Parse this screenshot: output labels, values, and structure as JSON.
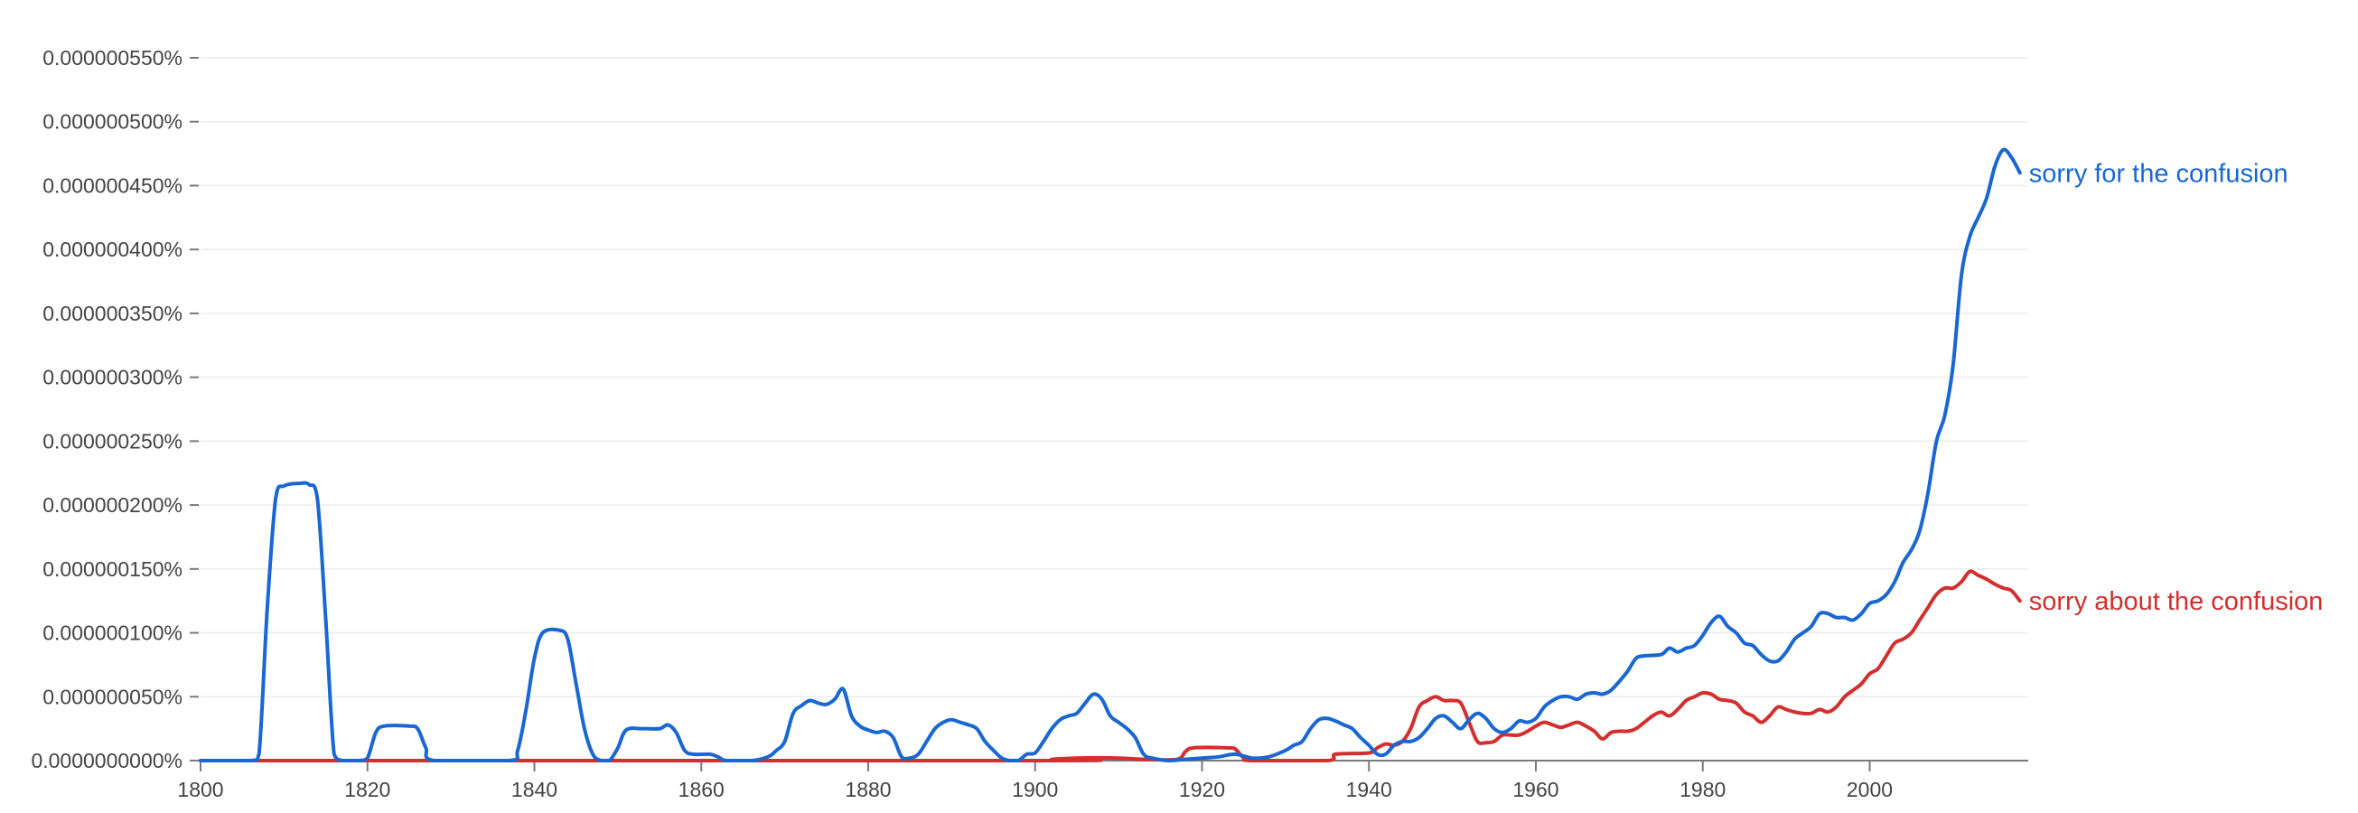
{
  "chart_data": {
    "type": "line",
    "title": "",
    "xlabel": "",
    "ylabel": "",
    "xlim": [
      1800,
      2019
    ],
    "ylim": [
      0,
      5.5e-07
    ],
    "grid": true,
    "legend": "inline-right",
    "x_ticks": [
      {
        "value": 1800,
        "label": "1800"
      },
      {
        "value": 1820,
        "label": "1820"
      },
      {
        "value": 1840,
        "label": "1840"
      },
      {
        "value": 1860,
        "label": "1860"
      },
      {
        "value": 1880,
        "label": "1880"
      },
      {
        "value": 1900,
        "label": "1900"
      },
      {
        "value": 1920,
        "label": "1920"
      },
      {
        "value": 1940,
        "label": "1940"
      },
      {
        "value": 1960,
        "label": "1960"
      },
      {
        "value": 1980,
        "label": "1980"
      },
      {
        "value": 2000,
        "label": "2000"
      }
    ],
    "y_ticks": [
      {
        "value": 0,
        "label": "0.0000000000%"
      },
      {
        "value": 5e-08,
        "label": "0.000000050%"
      },
      {
        "value": 1e-07,
        "label": "0.000000100%"
      },
      {
        "value": 1.5e-07,
        "label": "0.000000150%"
      },
      {
        "value": 2e-07,
        "label": "0.000000200%"
      },
      {
        "value": 2.5e-07,
        "label": "0.000000250%"
      },
      {
        "value": 3e-07,
        "label": "0.000000300%"
      },
      {
        "value": 3.5e-07,
        "label": "0.000000350%"
      },
      {
        "value": 4e-07,
        "label": "0.000000400%"
      },
      {
        "value": 4.5e-07,
        "label": "0.000000450%"
      },
      {
        "value": 5e-07,
        "label": "0.000000500%"
      },
      {
        "value": 5.5e-07,
        "label": "0.000000550%"
      }
    ],
    "series": [
      {
        "name": "sorry for the confusion",
        "color": "#1967d2",
        "points": [
          [
            1800,
            0
          ],
          [
            1806,
            0
          ],
          [
            1807,
            5e-09
          ],
          [
            1808,
            1.2e-07
          ],
          [
            1809,
            2.05e-07
          ],
          [
            1810,
            2.15e-07
          ],
          [
            1812,
            2.17e-07
          ],
          [
            1813,
            2.16e-07
          ],
          [
            1814,
            2.05e-07
          ],
          [
            1815,
            1.1e-07
          ],
          [
            1816,
            5e-09
          ],
          [
            1817,
            0
          ],
          [
            1819,
            0
          ],
          [
            1820,
            2e-09
          ],
          [
            1821,
            2.2e-08
          ],
          [
            1822,
            2.7e-08
          ],
          [
            1825,
            2.7e-08
          ],
          [
            1826,
            2.5e-08
          ],
          [
            1827,
            1e-08
          ],
          [
            1828,
            0
          ],
          [
            1837,
            0
          ],
          [
            1838,
            8e-09
          ],
          [
            1839,
            4e-08
          ],
          [
            1840,
            8e-08
          ],
          [
            1841,
            1e-07
          ],
          [
            1843,
            1.02e-07
          ],
          [
            1844,
            9.5e-08
          ],
          [
            1845,
            6e-08
          ],
          [
            1846,
            2.5e-08
          ],
          [
            1847,
            5e-09
          ],
          [
            1848,
            0
          ],
          [
            1849,
            0
          ],
          [
            1850,
            1e-08
          ],
          [
            1851,
            2.4e-08
          ],
          [
            1853,
            2.5e-08
          ],
          [
            1855,
            2.5e-08
          ],
          [
            1856,
            2.8e-08
          ],
          [
            1857,
            2.2e-08
          ],
          [
            1858,
            8e-09
          ],
          [
            1859,
            5e-09
          ],
          [
            1861,
            5e-09
          ],
          [
            1862,
            3e-09
          ],
          [
            1863,
            0
          ],
          [
            1866,
            0
          ],
          [
            1868,
            3e-09
          ],
          [
            1869,
            8e-09
          ],
          [
            1870,
            1.5e-08
          ],
          [
            1871,
            3.7e-08
          ],
          [
            1872,
            4.3e-08
          ],
          [
            1873,
            4.7e-08
          ],
          [
            1874,
            4.5e-08
          ],
          [
            1875,
            4.4e-08
          ],
          [
            1876,
            4.8e-08
          ],
          [
            1877,
            5.6e-08
          ],
          [
            1878,
            3.5e-08
          ],
          [
            1879,
            2.7e-08
          ],
          [
            1880,
            2.4e-08
          ],
          [
            1881,
            2.2e-08
          ],
          [
            1882,
            2.3e-08
          ],
          [
            1883,
            1.8e-08
          ],
          [
            1884,
            3e-09
          ],
          [
            1885,
            2e-09
          ],
          [
            1886,
            5e-09
          ],
          [
            1887,
            1.5e-08
          ],
          [
            1888,
            2.5e-08
          ],
          [
            1889,
            3e-08
          ],
          [
            1890,
            3.2e-08
          ],
          [
            1891,
            3e-08
          ],
          [
            1892,
            2.8e-08
          ],
          [
            1893,
            2.5e-08
          ],
          [
            1894,
            1.5e-08
          ],
          [
            1895,
            8e-09
          ],
          [
            1896,
            2e-09
          ],
          [
            1897,
            0
          ],
          [
            1898,
            0
          ],
          [
            1899,
            5e-09
          ],
          [
            1900,
            6e-09
          ],
          [
            1901,
            1.5e-08
          ],
          [
            1902,
            2.5e-08
          ],
          [
            1903,
            3.2e-08
          ],
          [
            1904,
            3.5e-08
          ],
          [
            1905,
            3.7e-08
          ],
          [
            1906,
            4.5e-08
          ],
          [
            1907,
            5.2e-08
          ],
          [
            1908,
            4.8e-08
          ],
          [
            1909,
            3.5e-08
          ],
          [
            1910,
            3e-08
          ],
          [
            1911,
            2.5e-08
          ],
          [
            1912,
            1.8e-08
          ],
          [
            1913,
            5e-09
          ],
          [
            1914,
            2e-09
          ],
          [
            1916,
            0
          ],
          [
            1918,
            1e-09
          ],
          [
            1920,
            2e-09
          ],
          [
            1922,
            3e-09
          ],
          [
            1924,
            5e-09
          ],
          [
            1926,
            2e-09
          ],
          [
            1928,
            3e-09
          ],
          [
            1930,
            8e-09
          ],
          [
            1931,
            1.2e-08
          ],
          [
            1932,
            1.5e-08
          ],
          [
            1933,
            2.5e-08
          ],
          [
            1934,
            3.2e-08
          ],
          [
            1935,
            3.3e-08
          ],
          [
            1936,
            3.1e-08
          ],
          [
            1937,
            2.8e-08
          ],
          [
            1938,
            2.5e-08
          ],
          [
            1939,
            1.8e-08
          ],
          [
            1940,
            1.2e-08
          ],
          [
            1941,
            5e-09
          ],
          [
            1942,
            5e-09
          ],
          [
            1943,
            1.2e-08
          ],
          [
            1944,
            1.5e-08
          ],
          [
            1945,
            1.5e-08
          ],
          [
            1946,
            1.8e-08
          ],
          [
            1947,
            2.5e-08
          ],
          [
            1948,
            3.3e-08
          ],
          [
            1949,
            3.5e-08
          ],
          [
            1950,
            3e-08
          ],
          [
            1951,
            2.5e-08
          ],
          [
            1952,
            3.2e-08
          ],
          [
            1953,
            3.7e-08
          ],
          [
            1954,
            3.3e-08
          ],
          [
            1955,
            2.5e-08
          ],
          [
            1956,
            2.2e-08
          ],
          [
            1957,
            2.5e-08
          ],
          [
            1958,
            3.1e-08
          ],
          [
            1959,
            3e-08
          ],
          [
            1960,
            3.3e-08
          ],
          [
            1961,
            4.2e-08
          ],
          [
            1962,
            4.7e-08
          ],
          [
            1963,
            5e-08
          ],
          [
            1964,
            5e-08
          ],
          [
            1965,
            4.8e-08
          ],
          [
            1966,
            5.2e-08
          ],
          [
            1967,
            5.3e-08
          ],
          [
            1968,
            5.2e-08
          ],
          [
            1969,
            5.5e-08
          ],
          [
            1970,
            6.2e-08
          ],
          [
            1971,
            7e-08
          ],
          [
            1972,
            8e-08
          ],
          [
            1973,
            8.2e-08
          ],
          [
            1975,
            8.3e-08
          ],
          [
            1976,
            8.8e-08
          ],
          [
            1977,
            8.5e-08
          ],
          [
            1978,
            8.8e-08
          ],
          [
            1979,
            9e-08
          ],
          [
            1980,
            9.8e-08
          ],
          [
            1981,
            1.08e-07
          ],
          [
            1982,
            1.13e-07
          ],
          [
            1983,
            1.05e-07
          ],
          [
            1984,
            1e-07
          ],
          [
            1985,
            9.2e-08
          ],
          [
            1986,
            9e-08
          ],
          [
            1987,
            8.3e-08
          ],
          [
            1988,
            7.8e-08
          ],
          [
            1989,
            7.8e-08
          ],
          [
            1990,
            8.5e-08
          ],
          [
            1991,
            9.5e-08
          ],
          [
            1992,
            1e-07
          ],
          [
            1993,
            1.05e-07
          ],
          [
            1994,
            1.15e-07
          ],
          [
            1995,
            1.15e-07
          ],
          [
            1996,
            1.12e-07
          ],
          [
            1997,
            1.12e-07
          ],
          [
            1998,
            1.1e-07
          ],
          [
            1999,
            1.15e-07
          ],
          [
            2000,
            1.23e-07
          ],
          [
            2001,
            1.25e-07
          ],
          [
            2002,
            1.3e-07
          ],
          [
            2003,
            1.4e-07
          ],
          [
            2004,
            1.55e-07
          ],
          [
            2005,
            1.65e-07
          ],
          [
            2006,
            1.8e-07
          ],
          [
            2007,
            2.1e-07
          ],
          [
            2008,
            2.5e-07
          ],
          [
            2009,
            2.7e-07
          ],
          [
            2010,
            3.1e-07
          ],
          [
            2011,
            3.8e-07
          ],
          [
            2012,
            4.1e-07
          ],
          [
            2013,
            4.25e-07
          ],
          [
            2014,
            4.4e-07
          ],
          [
            2015,
            4.65e-07
          ],
          [
            2016,
            4.78e-07
          ],
          [
            2017,
            4.72e-07
          ],
          [
            2018,
            4.6e-07
          ]
        ]
      },
      {
        "name": "sorry about the confusion",
        "color": "#d32f2f",
        "points": [
          [
            1800,
            0
          ],
          [
            1900,
            0
          ],
          [
            1902,
            1e-09
          ],
          [
            1905,
            2e-09
          ],
          [
            1910,
            2e-09
          ],
          [
            1913,
            1e-09
          ],
          [
            1917,
            1e-09
          ],
          [
            1918,
            7e-09
          ],
          [
            1919,
            1e-08
          ],
          [
            1923,
            1e-08
          ],
          [
            1924,
            9e-09
          ],
          [
            1925,
            2e-09
          ],
          [
            1926,
            0
          ],
          [
            1935,
            0
          ],
          [
            1936,
            5e-09
          ],
          [
            1940,
            6e-09
          ],
          [
            1941,
            1e-08
          ],
          [
            1942,
            1.3e-08
          ],
          [
            1943,
            1.2e-08
          ],
          [
            1944,
            1.5e-08
          ],
          [
            1945,
            2.5e-08
          ],
          [
            1946,
            4.2e-08
          ],
          [
            1947,
            4.7e-08
          ],
          [
            1948,
            5e-08
          ],
          [
            1949,
            4.7e-08
          ],
          [
            1950,
            4.7e-08
          ],
          [
            1951,
            4.5e-08
          ],
          [
            1952,
            3e-08
          ],
          [
            1953,
            1.5e-08
          ],
          [
            1954,
            1.4e-08
          ],
          [
            1955,
            1.5e-08
          ],
          [
            1956,
            2e-08
          ],
          [
            1957,
            2e-08
          ],
          [
            1958,
            2e-08
          ],
          [
            1959,
            2.3e-08
          ],
          [
            1960,
            2.7e-08
          ],
          [
            1961,
            3e-08
          ],
          [
            1962,
            2.8e-08
          ],
          [
            1963,
            2.6e-08
          ],
          [
            1964,
            2.8e-08
          ],
          [
            1965,
            3e-08
          ],
          [
            1966,
            2.7e-08
          ],
          [
            1967,
            2.3e-08
          ],
          [
            1968,
            1.7e-08
          ],
          [
            1969,
            2.2e-08
          ],
          [
            1970,
            2.3e-08
          ],
          [
            1971,
            2.3e-08
          ],
          [
            1972,
            2.5e-08
          ],
          [
            1973,
            3e-08
          ],
          [
            1974,
            3.5e-08
          ],
          [
            1975,
            3.8e-08
          ],
          [
            1976,
            3.5e-08
          ],
          [
            1977,
            4e-08
          ],
          [
            1978,
            4.7e-08
          ],
          [
            1979,
            5e-08
          ],
          [
            1980,
            5.3e-08
          ],
          [
            1981,
            5.2e-08
          ],
          [
            1982,
            4.8e-08
          ],
          [
            1983,
            4.7e-08
          ],
          [
            1984,
            4.5e-08
          ],
          [
            1985,
            3.8e-08
          ],
          [
            1986,
            3.5e-08
          ],
          [
            1987,
            3e-08
          ],
          [
            1988,
            3.5e-08
          ],
          [
            1989,
            4.2e-08
          ],
          [
            1990,
            4e-08
          ],
          [
            1991,
            3.8e-08
          ],
          [
            1992,
            3.7e-08
          ],
          [
            1993,
            3.7e-08
          ],
          [
            1994,
            4e-08
          ],
          [
            1995,
            3.8e-08
          ],
          [
            1996,
            4.2e-08
          ],
          [
            1997,
            5e-08
          ],
          [
            1998,
            5.5e-08
          ],
          [
            1999,
            6e-08
          ],
          [
            2000,
            6.8e-08
          ],
          [
            2001,
            7.2e-08
          ],
          [
            2002,
            8.2e-08
          ],
          [
            2003,
            9.2e-08
          ],
          [
            2004,
            9.5e-08
          ],
          [
            2005,
            1e-07
          ],
          [
            2006,
            1.1e-07
          ],
          [
            2007,
            1.2e-07
          ],
          [
            2008,
            1.3e-07
          ],
          [
            2009,
            1.35e-07
          ],
          [
            2010,
            1.35e-07
          ],
          [
            2011,
            1.4e-07
          ],
          [
            2012,
            1.48e-07
          ],
          [
            2013,
            1.45e-07
          ],
          [
            2014,
            1.42e-07
          ],
          [
            2015,
            1.38e-07
          ],
          [
            2016,
            1.35e-07
          ],
          [
            2017,
            1.33e-07
          ],
          [
            2018,
            1.25e-07
          ]
        ]
      }
    ]
  }
}
